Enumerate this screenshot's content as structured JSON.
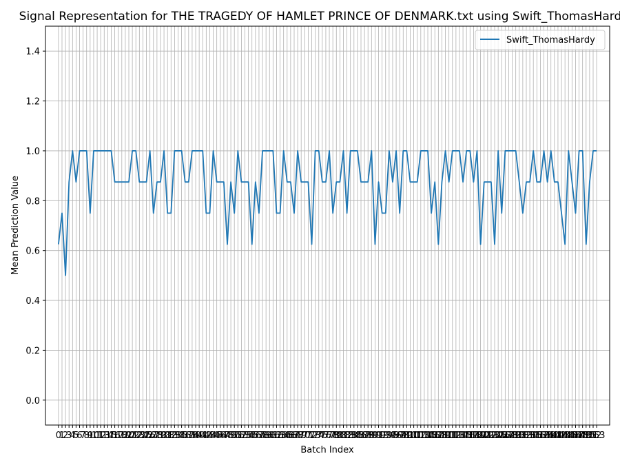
{
  "chart_data": {
    "type": "line",
    "title": "Signal Representation for THE TRAGEDY OF HAMLET PRINCE OF DENMARK.txt using Swift_ThomasHardy",
    "xlabel": "Batch Index",
    "ylabel": "Mean Prediction Value",
    "xlim": [
      -3.7,
      156.7
    ],
    "ylim": [
      -0.1,
      1.5
    ],
    "yticks": [
      "0.0",
      "0.2",
      "0.4",
      "0.6",
      "0.8",
      "1.0",
      "1.2",
      "1.4"
    ],
    "grid": true,
    "legend_position": "top-right",
    "series": [
      {
        "name": "Swift_ThomasHardy",
        "color": "#1f77b4",
        "values": [
          0.625,
          0.75,
          0.5,
          0.875,
          1.0,
          0.875,
          1.0,
          1.0,
          1.0,
          0.75,
          1.0,
          1.0,
          1.0,
          1.0,
          1.0,
          1.0,
          0.875,
          0.875,
          0.875,
          0.875,
          0.875,
          1.0,
          1.0,
          0.875,
          0.875,
          0.875,
          1.0,
          0.75,
          0.875,
          0.875,
          1.0,
          0.75,
          0.75,
          1.0,
          1.0,
          1.0,
          0.875,
          0.875,
          1.0,
          1.0,
          1.0,
          1.0,
          0.75,
          0.75,
          1.0,
          0.875,
          0.875,
          0.875,
          0.625,
          0.875,
          0.75,
          1.0,
          0.875,
          0.875,
          0.875,
          0.625,
          0.875,
          0.75,
          1.0,
          1.0,
          1.0,
          1.0,
          0.75,
          0.75,
          1.0,
          0.875,
          0.875,
          0.75,
          1.0,
          0.875,
          0.875,
          0.875,
          0.625,
          1.0,
          1.0,
          0.875,
          0.875,
          1.0,
          0.75,
          0.875,
          0.875,
          1.0,
          0.75,
          1.0,
          1.0,
          1.0,
          0.875,
          0.875,
          0.875,
          1.0,
          0.625,
          0.875,
          0.75,
          0.75,
          1.0,
          0.875,
          1.0,
          0.75,
          1.0,
          1.0,
          0.875,
          0.875,
          0.875,
          1.0,
          1.0,
          1.0,
          0.75,
          0.875,
          0.625,
          0.875,
          1.0,
          0.875,
          1.0,
          1.0,
          1.0,
          0.875,
          1.0,
          1.0,
          0.875,
          1.0,
          0.625,
          0.875,
          0.875,
          0.875,
          0.625,
          1.0,
          0.75,
          1.0,
          1.0,
          1.0,
          1.0,
          0.875,
          0.75,
          0.875,
          0.875,
          1.0,
          0.875,
          0.875,
          1.0,
          0.875,
          1.0,
          0.875,
          0.875,
          0.75,
          0.625,
          1.0,
          0.875,
          0.75,
          1.0,
          1.0,
          0.625,
          0.875,
          1.0,
          1.0
        ]
      }
    ]
  }
}
